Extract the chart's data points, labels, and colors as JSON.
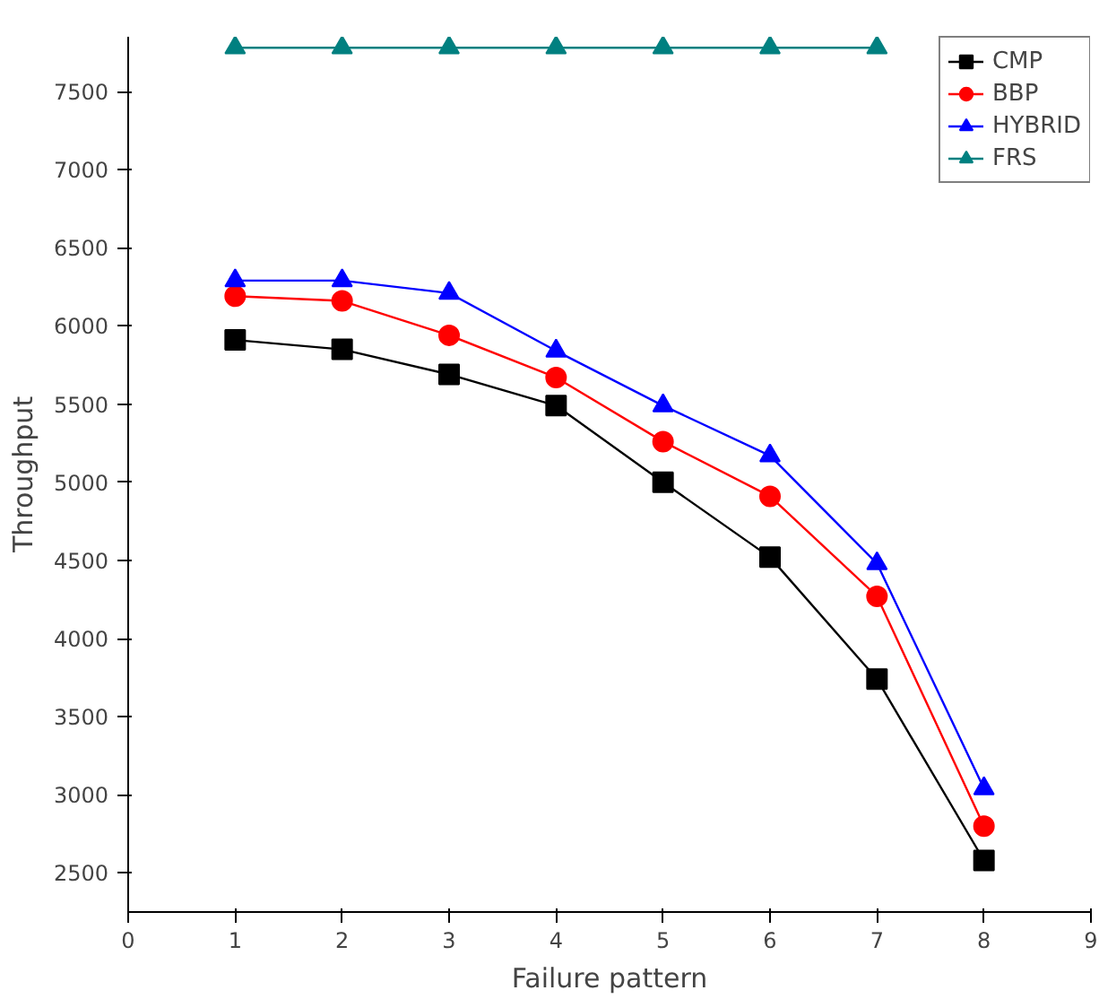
{
  "chart_data": {
    "type": "line",
    "xlabel": "Failure pattern",
    "ylabel": "Throughput",
    "x": [
      1,
      2,
      3,
      4,
      5,
      6,
      7,
      8
    ],
    "series": [
      {
        "name": "CMP",
        "color": "#000000",
        "marker": "square",
        "values": [
          5910,
          5850,
          5690,
          5490,
          5000,
          4520,
          3740,
          2580
        ]
      },
      {
        "name": "BBP",
        "color": "#ff0000",
        "marker": "circle",
        "values": [
          6190,
          6160,
          5940,
          5670,
          5260,
          4910,
          4270,
          2800
        ]
      },
      {
        "name": "HYBRID",
        "color": "#0000ff",
        "marker": "triangle",
        "values": [
          6290,
          6290,
          6210,
          5840,
          5490,
          5170,
          4480,
          3040
        ]
      },
      {
        "name": "FRS",
        "color": "#008080",
        "marker": "triangle",
        "values": [
          7780,
          7780,
          7780,
          7780,
          7780,
          7780,
          7780,
          null
        ]
      }
    ],
    "xlim": [
      0,
      9
    ],
    "ylim": [
      2250,
      7850
    ],
    "xticks": [
      0,
      1,
      2,
      3,
      4,
      5,
      6,
      7,
      8,
      9
    ],
    "yticks": [
      2500,
      3000,
      3500,
      4000,
      4500,
      5000,
      5500,
      6000,
      6500,
      7000,
      7500
    ],
    "grid": false,
    "legend": "top right",
    "line_style": "solid"
  }
}
